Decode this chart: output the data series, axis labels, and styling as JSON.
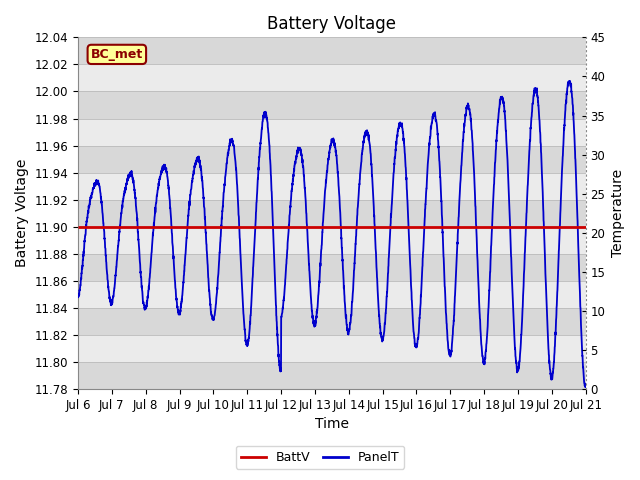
{
  "title": "Battery Voltage",
  "xlabel": "Time",
  "ylabel_left": "Battery Voltage",
  "ylabel_right": "Temperature",
  "ylim_left": [
    11.78,
    12.04
  ],
  "ylim_right": [
    0,
    45
  ],
  "xlim": [
    0,
    15
  ],
  "x_tick_labels": [
    "Jul 6",
    "Jul 7",
    "Jul 8",
    "Jul 9",
    "Jul 10",
    "Jul 11",
    "Jul 12",
    "Jul 13",
    "Jul 14",
    "Jul 15",
    "Jul 16",
    "Jul 17",
    "Jul 18",
    "Jul 19",
    "Jul 20",
    "Jul 21"
  ],
  "battv_value": 11.9,
  "battv_color": "#cc0000",
  "panelt_color": "#0000cc",
  "background_color": "#ffffff",
  "stripe_color_dark": "#d8d8d8",
  "stripe_color_light": "#ebebeb",
  "grid_color": "#bbbbbb",
  "bc_met_label": "BC_met",
  "bc_met_bg": "#ffff99",
  "bc_met_border": "#8b0000",
  "legend_battv": "BattV",
  "legend_panelt": "PanelT",
  "title_fontsize": 12,
  "axis_label_fontsize": 10,
  "tick_fontsize": 8.5,
  "left_yticks": [
    11.78,
    11.8,
    11.82,
    11.84,
    11.86,
    11.88,
    11.9,
    11.92,
    11.94,
    11.96,
    11.98,
    12.0,
    12.02,
    12.04
  ],
  "right_yticks": [
    0,
    5,
    10,
    15,
    20,
    25,
    30,
    35,
    40,
    45
  ]
}
